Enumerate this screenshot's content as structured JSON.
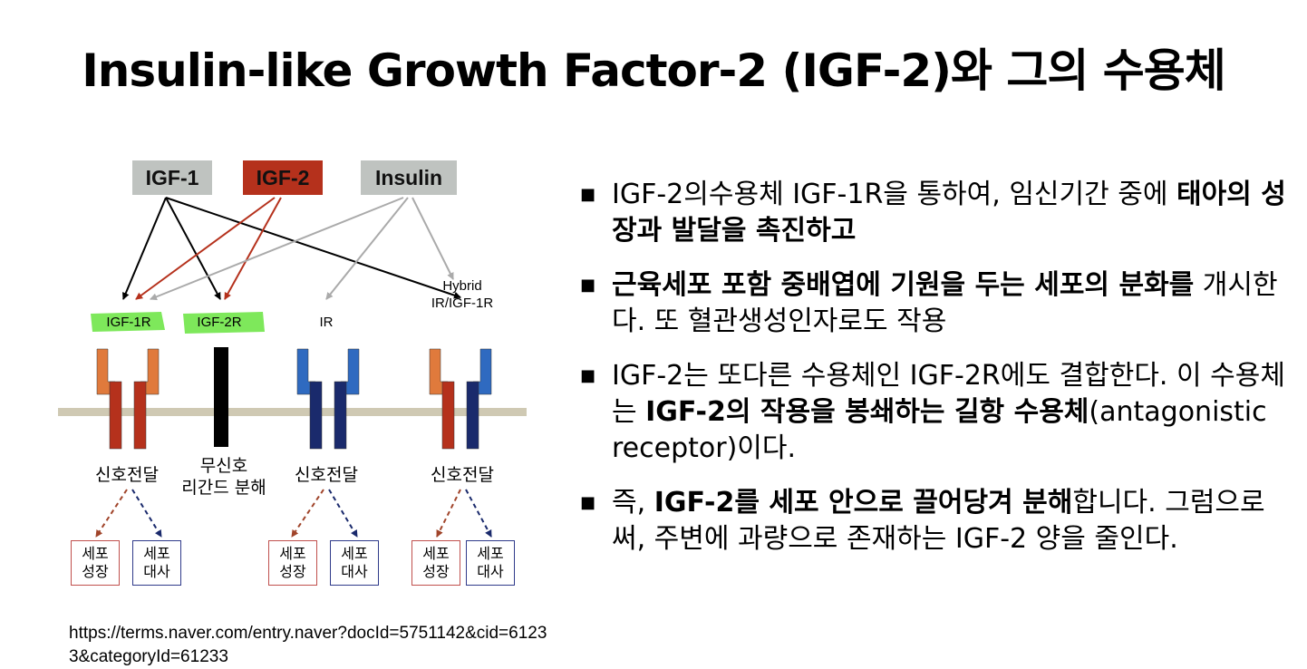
{
  "title": "Insulin-like Growth Factor-2 (IGF-2)와 그의 수용체",
  "diagram": {
    "ligands": [
      {
        "label": "IGF-1",
        "bg": "#bfc3c0",
        "fg": "#111111"
      },
      {
        "label": "IGF-2",
        "bg": "#b5311c",
        "fg": "#111111"
      },
      {
        "label": "Insulin",
        "bg": "#bfc3c0",
        "fg": "#111111"
      }
    ],
    "receptors": [
      {
        "label": "IGF-1R",
        "highlight": true
      },
      {
        "label": "IGF-2R",
        "highlight": true
      },
      {
        "label": "IR",
        "highlight": false
      },
      {
        "label": "Hybrid IR/IGF-1R",
        "line1": "Hybrid",
        "line2": "IR/IGF-1R",
        "highlight": false
      }
    ],
    "outcomes": [
      {
        "line1": "신호전달",
        "line2": ""
      },
      {
        "line1": "무신호",
        "line2": "리간드 분해"
      },
      {
        "line1": "신호전달",
        "line2": ""
      },
      {
        "line1": "신호전달",
        "line2": ""
      }
    ],
    "effect_boxes": {
      "growth": {
        "line1": "세포",
        "line2": "성장"
      },
      "metabolism": {
        "line1": "세포",
        "line2": "대사"
      }
    },
    "colors": {
      "membrane": "#cfc9b3",
      "igf1r_outer": "#e07a3c",
      "igf1r_inner": "#b5311c",
      "ir_outer": "#2f6ac0",
      "ir_inner": "#1a2a6c",
      "igf2r": "#000000",
      "highlight": "#7ee85b",
      "arrow_igf2": "#b5311c",
      "arrow_insulin": "#aaaaaa",
      "arrow_igf1": "#000000",
      "dash_growth": "#a0442a",
      "dash_metab": "#1a2a6c"
    }
  },
  "source_url": "https://terms.naver.com/entry.naver?docId=5751142&cid=61233&categoryId=61233",
  "bullets": [
    {
      "segments": [
        {
          "text": "IGF-2의수용체 IGF-1R을 통하여, 임신기간 중에 ",
          "bold": false
        },
        {
          "text": "태아의 성장과 발달을 촉진하고",
          "bold": true
        }
      ]
    },
    {
      "segments": [
        {
          "text": "근육세포 포함 중배엽에 기원을 두는 세포의 분화를",
          "bold": true
        },
        {
          "text": " 개시한다. 또 혈관생성인자로도 작용",
          "bold": false
        }
      ]
    },
    {
      "segments": [
        {
          "text": "IGF-2는 또다른 수용체인 IGF-2R에도 결합한다. 이 수용체는 ",
          "bold": false
        },
        {
          "text": "IGF-2의 작용을 봉쇄하는 길항 수용체",
          "bold": true
        },
        {
          "text": "(antagonistic receptor)이다.",
          "bold": false
        }
      ]
    },
    {
      "segments": [
        {
          "text": "즉, ",
          "bold": false
        },
        {
          "text": "IGF-2를 세포 안으로 끌어당겨 분해",
          "bold": true
        },
        {
          "text": "합니다. 그럼으로써, 주변에 과량으로 존재하는 IGF-2 양을 줄인다.",
          "bold": false
        }
      ]
    }
  ],
  "bullet_marker": "■"
}
